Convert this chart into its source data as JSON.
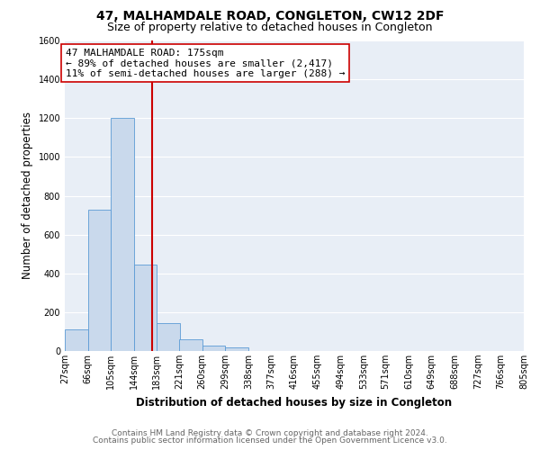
{
  "title": "47, MALHAMDALE ROAD, CONGLETON, CW12 2DF",
  "subtitle": "Size of property relative to detached houses in Congleton",
  "xlabel": "Distribution of detached houses by size in Congleton",
  "ylabel": "Number of detached properties",
  "footer_lines": [
    "Contains HM Land Registry data © Crown copyright and database right 2024.",
    "Contains public sector information licensed under the Open Government Licence v3.0."
  ],
  "bin_edges": [
    27,
    66,
    105,
    144,
    183,
    221,
    260,
    299,
    338,
    377,
    416,
    455,
    494,
    533,
    571,
    610,
    649,
    688,
    727,
    766,
    805
  ],
  "bin_labels": [
    "27sqm",
    "66sqm",
    "105sqm",
    "144sqm",
    "183sqm",
    "221sqm",
    "260sqm",
    "299sqm",
    "338sqm",
    "377sqm",
    "416sqm",
    "455sqm",
    "494sqm",
    "533sqm",
    "571sqm",
    "610sqm",
    "649sqm",
    "688sqm",
    "727sqm",
    "766sqm",
    "805sqm"
  ],
  "bar_heights": [
    110,
    730,
    1200,
    445,
    145,
    60,
    30,
    20,
    0,
    0,
    0,
    0,
    0,
    0,
    0,
    0,
    0,
    0,
    0,
    0
  ],
  "bar_color": "#c9d9ec",
  "bar_edge_color": "#5b9bd5",
  "property_line_x": 175,
  "property_line_color": "#cc0000",
  "annotation_title": "47 MALHAMDALE ROAD: 175sqm",
  "annotation_line1": "← 89% of detached houses are smaller (2,417)",
  "annotation_line2": "11% of semi-detached houses are larger (288) →",
  "annotation_box_color": "#ffffff",
  "annotation_box_edge": "#cc0000",
  "ylim": [
    0,
    1600
  ],
  "yticks": [
    0,
    200,
    400,
    600,
    800,
    1000,
    1200,
    1400,
    1600
  ],
  "background_color": "#e8eef6",
  "grid_color": "#ffffff",
  "fig_background": "#ffffff",
  "title_fontsize": 10,
  "subtitle_fontsize": 9,
  "axis_label_fontsize": 8.5,
  "tick_fontsize": 7,
  "annotation_fontsize": 8,
  "footer_fontsize": 6.5
}
